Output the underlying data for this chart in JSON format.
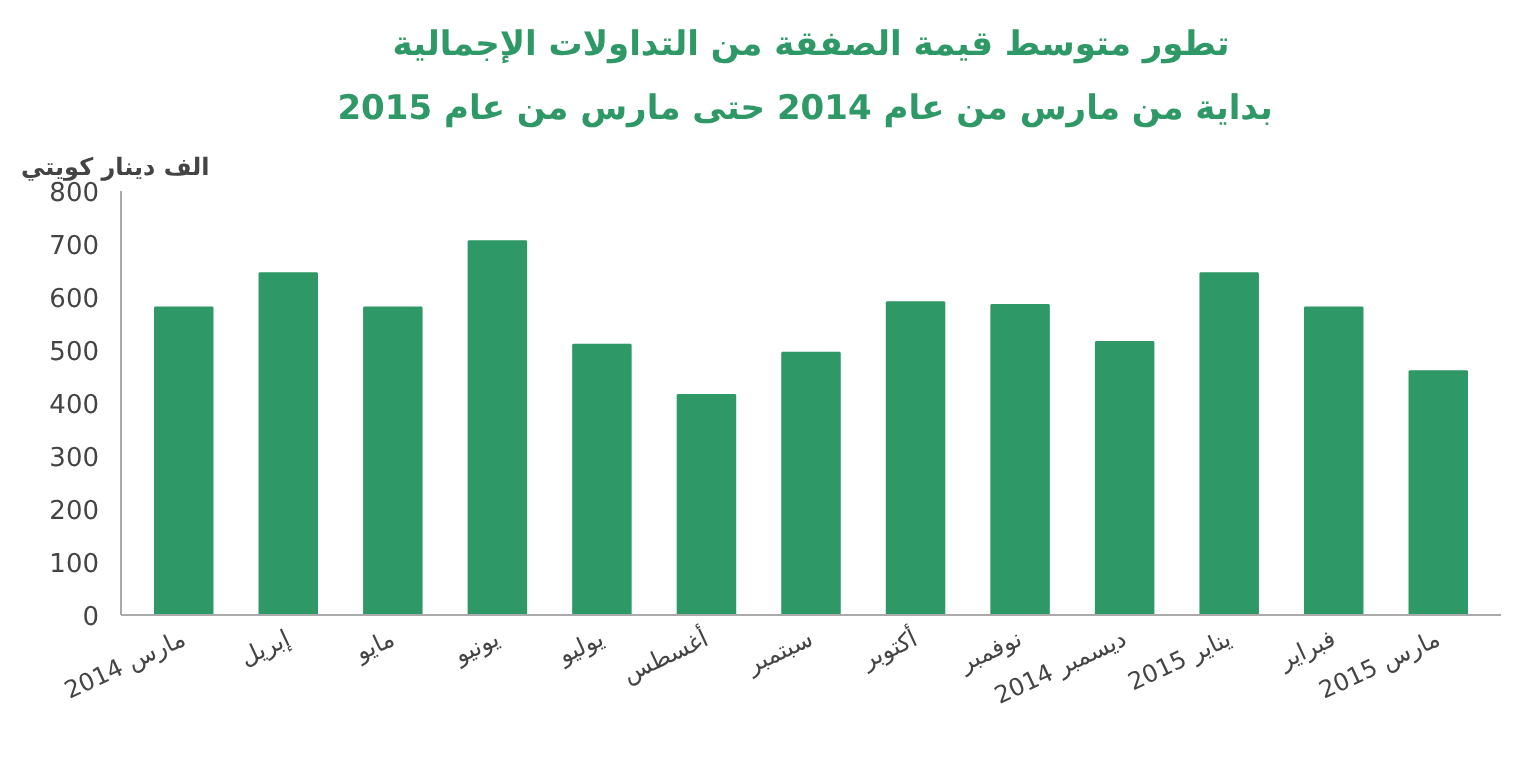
{
  "chart_data": {
    "type": "bar",
    "title": "تطور متوسط قيمة الصفقة من التداولات الإجمالية",
    "subtitle": "بداية من مارس من عام 2014 حتى مارس من عام  2015",
    "ylabel": "الف دينار كويتي",
    "categories": [
      "مارس 2014",
      "إبريل",
      "مايو",
      "يونيو",
      "يوليو",
      "أغسطس",
      "سبتمبر",
      "أكتوبر",
      "نوفمبر",
      "ديسمبر 2014",
      "يناير 2015",
      "فبراير",
      "مارس 2015"
    ],
    "values": [
      580,
      645,
      580,
      705,
      510,
      415,
      495,
      590,
      585,
      515,
      645,
      580,
      460
    ],
    "color": "#2e9966",
    "ylim": [
      0,
      800
    ],
    "yticks": [
      0,
      100,
      200,
      300,
      400,
      500,
      600,
      700,
      800
    ],
    "grid": false
  }
}
